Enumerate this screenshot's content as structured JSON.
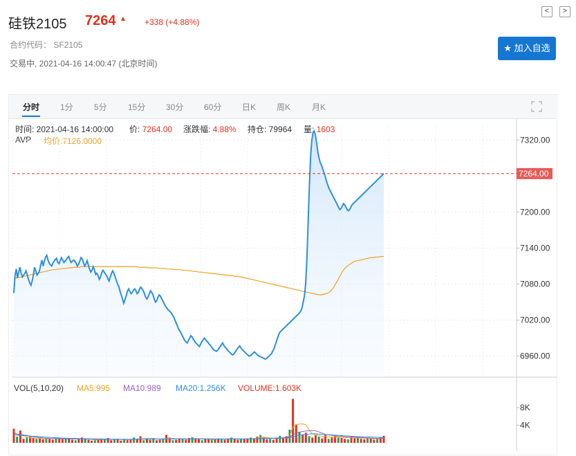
{
  "header": {
    "title": "硅铁2105",
    "price": "7264",
    "change": "+338 (+4.88%)",
    "code_label": "合约代码：",
    "code": "SF2105",
    "status": "交易中,",
    "datetime": "2021-04-16 14:00:47 (北京时间)",
    "prev": "<",
    "next": ">",
    "watch_label": "加入自选"
  },
  "tabs": [
    {
      "label": "分时"
    },
    {
      "label": "1分"
    },
    {
      "label": "5分"
    },
    {
      "label": "15分"
    },
    {
      "label": "30分"
    },
    {
      "label": "60分"
    },
    {
      "label": "日K"
    },
    {
      "label": "周K"
    },
    {
      "label": "月K"
    }
  ],
  "info": {
    "time": "时间: 2021-04-16 14:00:00",
    "price_label": "价: ",
    "price_value": "7264.00",
    "change_label": "涨跌幅: ",
    "change_value": "4.88%",
    "oi_label": "持仓: ",
    "oi_value": "79964",
    "vol_label": "量: ",
    "vol_value": "1603",
    "avp": "AVP",
    "avg": "均价:7126.0000"
  },
  "volume_legend": {
    "label": "VOL(5,10,20)",
    "ma5": "MA5:995",
    "ma10": "MA10:989",
    "ma20": "MA20:1.256K",
    "volume": "VOLUME:1.603K"
  },
  "colors": {
    "price_line": "#2b8ee0",
    "avg_line": "#f0a020",
    "up": "#e0301e",
    "down": "#1aa260",
    "ma5": "#f0a020",
    "ma10": "#9a5fc8",
    "ma20": "#2b8ee0",
    "volume": "#e0301e",
    "accent": "#1677d2"
  },
  "chart_data": [
    {
      "type": "line",
      "y_ticks": [
        "7320.00",
        "7200.00",
        "7140.00",
        "7080.00",
        "7020.00",
        "6960.00"
      ],
      "current_price_label": "7264.00",
      "current_price": 7264,
      "ylim": [
        6925,
        7348
      ],
      "grid": true,
      "series": [
        {
          "name": "价",
          "values": [
            7065,
            7095,
            7105,
            7090,
            7100,
            7108,
            7098,
            7092,
            7095,
            7098,
            7102,
            7095,
            7088,
            7082,
            7078,
            7085,
            7095,
            7108,
            7102,
            7095,
            7098,
            7102,
            7112,
            7120,
            7110,
            7118,
            7125,
            7128,
            7120,
            7115,
            7112,
            7110,
            7115,
            7118,
            7121,
            7123,
            7116,
            7114,
            7119,
            7124,
            7120,
            7116,
            7118,
            7121,
            7124,
            7126,
            7120,
            7116,
            7118,
            7120,
            7118,
            7115,
            7110,
            7113,
            7118,
            7124,
            7122,
            7116,
            7110,
            7113,
            7119,
            7112,
            7105,
            7100,
            7103,
            7109,
            7104,
            7096,
            7098,
            7094,
            7088,
            7092,
            7099,
            7103,
            7100,
            7097,
            7094,
            7089,
            7085,
            7092,
            7098,
            7102,
            7098,
            7092,
            7086,
            7080,
            7076,
            7068,
            7062,
            7055,
            7048,
            7054,
            7060,
            7068,
            7072,
            7068,
            7064,
            7066,
            7070,
            7072,
            7069,
            7064,
            7066,
            7072,
            7075,
            7072,
            7069,
            7064,
            7058,
            7055,
            7059,
            7064,
            7069,
            7066,
            7062,
            7055,
            7050,
            7052,
            7058,
            7062,
            7060,
            7056,
            7052,
            7048,
            7044,
            7041,
            7038,
            7036,
            7034,
            7032,
            7028,
            7025,
            7020,
            7015,
            7010,
            7005,
            7002,
            6998,
            6994,
            6990,
            6986,
            6984,
            6982,
            6986,
            6990,
            6994,
            6992,
            6988,
            6985,
            6982,
            6980,
            6978,
            6976,
            6980,
            6984,
            6987,
            6990,
            6988,
            6985,
            6983,
            6980,
            6978,
            6975,
            6972,
            6970,
            6969,
            6968,
            6970,
            6973,
            6976,
            6979,
            6982,
            6978,
            6975,
            6973,
            6970,
            6968,
            6966,
            6964,
            6962,
            6963,
            6966,
            6969,
            6972,
            6975,
            6977,
            6974,
            6971,
            6969,
            6967,
            6965,
            6963,
            6961,
            6960,
            6961,
            6963,
            6965,
            6967,
            6965,
            6963,
            6961,
            6960,
            6959,
            6958,
            6957,
            6956,
            6955,
            6956,
            6958,
            6960,
            6962,
            6964,
            6968,
            6972,
            6978,
            6984,
            6990,
            6996,
            7000,
            7002,
            7004,
            7006,
            7008,
            7010,
            7012,
            7014,
            7016,
            7018,
            7020,
            7022,
            7024,
            7026,
            7028,
            7030,
            7032,
            7035,
            7040,
            7050,
            7060,
            7080,
            7120,
            7180,
            7240,
            7290,
            7318,
            7332,
            7335,
            7328,
            7315,
            7300,
            7290,
            7282,
            7278,
            7272,
            7266,
            7260,
            7252,
            7246,
            7240,
            7236,
            7232,
            7228,
            7224,
            7220,
            7216,
            7212,
            7208,
            7204,
            7206,
            7210,
            7214,
            7212,
            7208,
            7204,
            7202,
            7204,
            7208,
            7212,
            7214,
            7216,
            7218,
            7220,
            7222,
            7224,
            7226,
            7228,
            7230,
            7232,
            7234,
            7236,
            7238,
            7240,
            7242,
            7244,
            7246,
            7248,
            7250,
            7252,
            7254,
            7256,
            7258,
            7260,
            7262,
            7264
          ]
        },
        {
          "name": "均价",
          "values": [
            7088,
            7090,
            7091,
            7092,
            7093,
            7094,
            7095,
            7096,
            7097,
            7098,
            7099,
            7100,
            7101,
            7102,
            7103,
            7104,
            7104,
            7105,
            7105,
            7106,
            7106,
            7107,
            7107,
            7108,
            7108,
            7108,
            7109,
            7109,
            7109,
            7109,
            7109,
            7109,
            7109,
            7109,
            7109,
            7109,
            7109,
            7109,
            7109,
            7109,
            7109,
            7109,
            7109,
            7109,
            7109,
            7109,
            7109,
            7109,
            7108,
            7108,
            7108,
            7108,
            7107,
            7107,
            7107,
            7107,
            7106,
            7106,
            7106,
            7105,
            7105,
            7105,
            7104,
            7104,
            7104,
            7103,
            7103,
            7102,
            7102,
            7101,
            7101,
            7100,
            7100,
            7099,
            7099,
            7098,
            7098,
            7097,
            7097,
            7096,
            7096,
            7095,
            7095,
            7094,
            7094,
            7093,
            7093,
            7092,
            7091,
            7090,
            7089,
            7088,
            7087,
            7086,
            7085,
            7084,
            7083,
            7082,
            7081,
            7080,
            7079,
            7078,
            7077,
            7076,
            7075,
            7074,
            7073,
            7072,
            7071,
            7070,
            7069,
            7068,
            7067,
            7066,
            7065,
            7064,
            7063,
            7062,
            7062,
            7063,
            7064,
            7066,
            7070,
            7076,
            7084,
            7092,
            7100,
            7106,
            7110,
            7113,
            7116,
            7118,
            7119,
            7120,
            7121,
            7122,
            7123,
            7124,
            7124,
            7125,
            7125,
            7126,
            7126
          ]
        }
      ]
    },
    {
      "type": "bar",
      "y_ticks": [
        "8K",
        "4K"
      ],
      "ylim": [
        0,
        11000
      ],
      "series": [
        {
          "name": "VOLUME",
          "values": [
            3200,
            1400,
            2800,
            900,
            1200,
            1400,
            1100,
            900,
            1000,
            800,
            1100,
            900,
            700,
            1000,
            1200,
            800,
            900,
            1100,
            700,
            600,
            900,
            1200,
            800,
            700,
            500,
            600,
            900,
            700,
            800,
            1100,
            600,
            700,
            900,
            500,
            800,
            600,
            700,
            1200,
            800,
            1500,
            600,
            900,
            700,
            800,
            600,
            700,
            1000,
            1800,
            1200,
            600,
            700,
            900,
            800,
            700,
            1100,
            1300,
            900,
            800,
            600,
            900,
            800,
            700,
            900,
            1000,
            800,
            700,
            1000,
            1200,
            900,
            700,
            800,
            900,
            1000,
            1200,
            900,
            1400,
            1800,
            1200,
            800,
            900,
            700,
            1200,
            1600,
            1000,
            1500,
            3000,
            10000,
            4200,
            2500,
            1800,
            2300,
            1500,
            1200,
            1700,
            1400,
            1000,
            1800,
            900,
            1200,
            1500,
            1300,
            1100,
            900,
            800,
            1400,
            1000,
            1200,
            900,
            800,
            1100,
            1000,
            700,
            900,
            1200,
            1600
          ]
        },
        {
          "name": "MA5",
          "values": [
            2600,
            1900,
            1700,
            1600,
            1400,
            1150,
            1120,
            1040,
            1000,
            1000,
            950,
            900,
            950,
            1000,
            900,
            900,
            950,
            960,
            900,
            860,
            880,
            900,
            880,
            860,
            780,
            700,
            700,
            750,
            800,
            850,
            800,
            780,
            800,
            760,
            740,
            720,
            760,
            840,
            860,
            960,
            900,
            1000,
            960,
            1040,
            880,
            840,
            800,
            1000,
            1060,
            1000,
            940,
            960,
            900,
            840,
            860,
            980,
            980,
            960,
            880,
            900,
            840,
            800,
            780,
            880,
            860,
            840,
            900,
            940,
            920,
            920,
            880,
            880,
            900,
            960,
            1000,
            1040,
            1240,
            1300,
            1220,
            1060,
            1000,
            960,
            1060,
            1180,
            1200,
            1660,
            3520,
            4060,
            4300,
            4280,
            4140,
            2900,
            2040,
            1840,
            1680,
            1480,
            1500,
            1320,
            1380,
            1300,
            1220,
            1260,
            1280,
            1160,
            1120,
            1100,
            1100,
            1060,
            1060,
            1080,
            1000,
            940,
            920,
            960,
            995
          ]
        },
        {
          "name": "MA10",
          "values": [
            2200,
            2000,
            1900,
            1800,
            1700,
            1500,
            1400,
            1300,
            1200,
            1100,
            1050,
            1000,
            980,
            960,
            940,
            930,
            920,
            910,
            900,
            890,
            880,
            880,
            870,
            860,
            850,
            840,
            820,
            810,
            800,
            800,
            790,
            790,
            790,
            780,
            780,
            780,
            790,
            810,
            840,
            870,
            880,
            890,
            900,
            910,
            900,
            890,
            880,
            900,
            920,
            930,
            920,
            920,
            910,
            900,
            890,
            900,
            910,
            910,
            900,
            890,
            880,
            870,
            860,
            860,
            860,
            860,
            870,
            880,
            880,
            890,
            890,
            890,
            900,
            910,
            930,
            960,
            1010,
            1060,
            1080,
            1080,
            1080,
            1080,
            1120,
            1170,
            1200,
            1360,
            1840,
            2160,
            2440,
            2600,
            2700,
            2760,
            2800,
            2720,
            2500,
            2200,
            1900,
            1800,
            1700,
            1600,
            1500,
            1450,
            1400,
            1380,
            1350,
            1300,
            1250,
            1200,
            1150,
            1120,
            1080,
            1050,
            1020,
            1000,
            989
          ]
        },
        {
          "name": "MA20",
          "values": [
            1800,
            1750,
            1700,
            1650,
            1600,
            1550,
            1500,
            1450,
            1400,
            1350,
            1300,
            1250,
            1200,
            1150,
            1100,
            1080,
            1060,
            1040,
            1020,
            1000,
            980,
            960,
            940,
            920,
            910,
            900,
            890,
            880,
            870,
            860,
            850,
            840,
            830,
            820,
            815,
            810,
            810,
            815,
            820,
            830,
            840,
            850,
            855,
            860,
            860,
            860,
            860,
            870,
            880,
            890,
            895,
            900,
            900,
            900,
            900,
            900,
            905,
            905,
            905,
            905,
            900,
            895,
            890,
            885,
            880,
            880,
            880,
            880,
            885,
            890,
            890,
            895,
            900,
            905,
            915,
            930,
            950,
            970,
            990,
            1010,
            1020,
            1030,
            1050,
            1080,
            1100,
            1180,
            1400,
            1600,
            1750,
            1850,
            1950,
            2000,
            2050,
            2050,
            2000,
            1950,
            1900,
            1850,
            1800,
            1750,
            1700,
            1650,
            1600,
            1550,
            1500,
            1450,
            1420,
            1390,
            1360,
            1340,
            1320,
            1300,
            1280,
            1265,
            1256
          ]
        }
      ]
    }
  ]
}
